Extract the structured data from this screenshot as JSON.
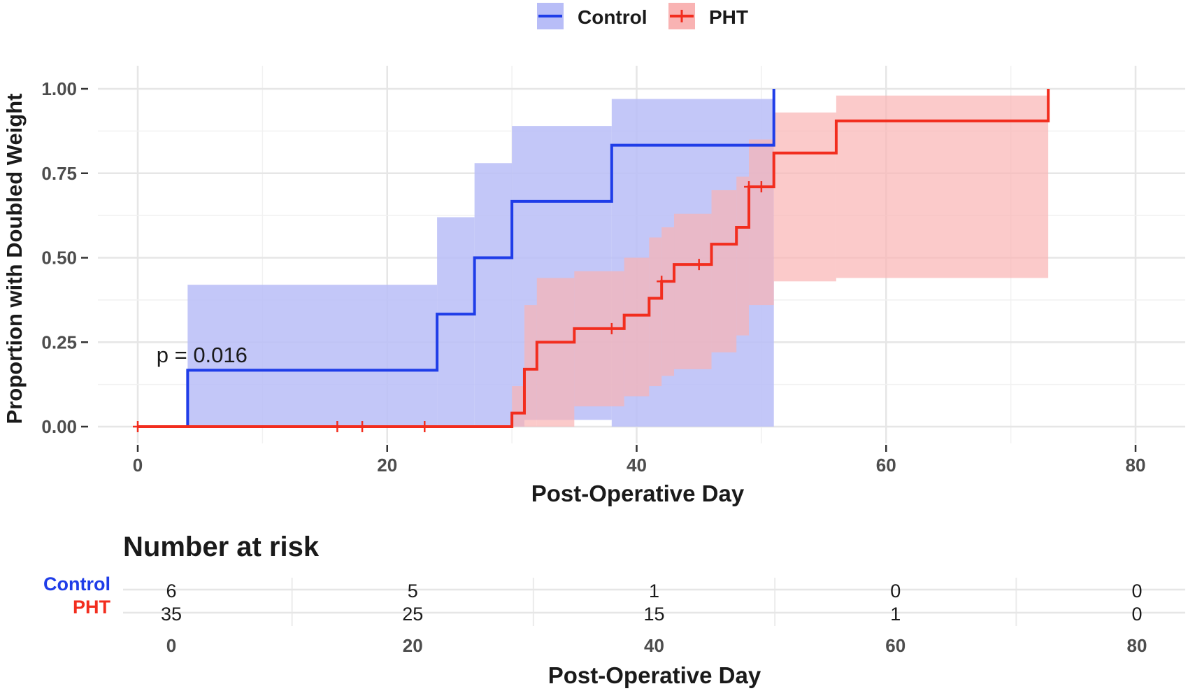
{
  "chart_data": [
    {
      "type": "step",
      "legend": {
        "position": "top",
        "entries": [
          {
            "name": "Control",
            "color": "#1f3de8",
            "fill": "#b8bdf7"
          },
          {
            "name": "PHT",
            "color": "#f22d1e",
            "fill": "#f9b3b3"
          }
        ]
      },
      "xlabel": "Post-Operative Day",
      "ylabel": "Proportion with Doubled Weight",
      "xlim": [
        -3,
        84
      ],
      "ylim": [
        -0.05,
        1.05
      ],
      "x_ticks": [
        0,
        20,
        40,
        60,
        80
      ],
      "y_ticks": [
        0.0,
        0.25,
        0.5,
        0.75,
        1.0
      ],
      "y_tick_labels": [
        "0.00",
        "0.25",
        "0.50",
        "0.75",
        "1.00"
      ],
      "x_tick_labels": [
        "0",
        "20",
        "40",
        "60",
        "80"
      ],
      "grid": true,
      "annotation": {
        "text": "p = 0.016",
        "x": 1.5,
        "y": 0.19
      },
      "series": [
        {
          "name": "Control",
          "color": "#1f3de8",
          "steps": [
            [
              0,
              0
            ],
            [
              4,
              0.167
            ],
            [
              24,
              0.333
            ],
            [
              27,
              0.5
            ],
            [
              30,
              0.667
            ],
            [
              38,
              0.833
            ],
            [
              51,
              1.0
            ]
          ],
          "censor": [],
          "ci": [
            [
              4,
              0.0,
              0.42
            ],
            [
              24,
              0.0,
              0.62
            ],
            [
              27,
              0.0,
              0.78
            ],
            [
              30,
              0.0,
              0.89
            ],
            [
              31,
              0.02,
              0.89
            ],
            [
              38,
              0.0,
              0.97
            ],
            [
              51,
              0.0,
              0.97
            ]
          ]
        },
        {
          "name": "PHT",
          "color": "#f22d1e",
          "steps": [
            [
              0,
              0
            ],
            [
              30,
              0.04
            ],
            [
              31,
              0.17
            ],
            [
              32,
              0.25
            ],
            [
              35,
              0.29
            ],
            [
              39,
              0.33
            ],
            [
              41,
              0.38
            ],
            [
              42,
              0.43
            ],
            [
              43,
              0.48
            ],
            [
              46,
              0.54
            ],
            [
              48,
              0.59
            ],
            [
              49,
              0.71
            ],
            [
              51,
              0.81
            ],
            [
              56,
              0.905
            ],
            [
              73,
              1.0
            ]
          ],
          "censor": [
            [
              0,
              0
            ],
            [
              16,
              0
            ],
            [
              18,
              0
            ],
            [
              23,
              0
            ],
            [
              38,
              0.29
            ],
            [
              42,
              0.43
            ],
            [
              45,
              0.48
            ],
            [
              49,
              0.71
            ],
            [
              50,
              0.71
            ]
          ],
          "ci": [
            [
              30,
              0.0,
              0.12
            ],
            [
              31,
              0.0,
              0.36
            ],
            [
              32,
              0.0,
              0.44
            ],
            [
              35,
              0.06,
              0.46
            ],
            [
              39,
              0.09,
              0.5
            ],
            [
              41,
              0.12,
              0.56
            ],
            [
              42,
              0.15,
              0.59
            ],
            [
              43,
              0.17,
              0.63
            ],
            [
              46,
              0.22,
              0.7
            ],
            [
              48,
              0.27,
              0.74
            ],
            [
              49,
              0.36,
              0.85
            ],
            [
              51,
              0.43,
              0.93
            ],
            [
              56,
              0.44,
              0.98
            ],
            [
              73,
              0.44,
              0.98
            ]
          ]
        }
      ]
    },
    {
      "type": "table",
      "title": "Number at risk",
      "xlabel": "Post-Operative Day",
      "x_ticks": [
        0,
        20,
        40,
        60,
        80
      ],
      "x_tick_labels": [
        "0",
        "20",
        "40",
        "60",
        "80"
      ],
      "rows": [
        {
          "name": "Control",
          "color": "#1f3de8",
          "values": [
            "6",
            "5",
            "1",
            "0",
            "0"
          ]
        },
        {
          "name": "PHT",
          "color": "#f22d1e",
          "values": [
            "35",
            "25",
            "15",
            "1",
            "0"
          ]
        }
      ]
    }
  ]
}
